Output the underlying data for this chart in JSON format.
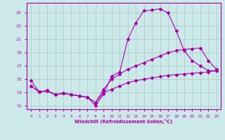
{
  "xlabel": "Windchill (Refroidissement éolien,°C)",
  "bg_color": "#cce8e8",
  "grid_color": "#aad0d0",
  "line_color": "#aa00aa",
  "xlim": [
    -0.5,
    23.5
  ],
  "ylim": [
    10.5,
    26.5
  ],
  "xticks": [
    0,
    1,
    2,
    3,
    4,
    5,
    6,
    7,
    8,
    9,
    10,
    11,
    12,
    13,
    14,
    15,
    16,
    17,
    18,
    19,
    20,
    21,
    22,
    23
  ],
  "yticks": [
    11,
    13,
    15,
    17,
    19,
    21,
    23,
    25
  ],
  "line1_x": [
    0,
    1,
    2,
    3,
    4,
    5,
    6,
    7,
    8,
    9,
    10,
    11,
    12,
    13,
    14,
    15,
    16,
    17,
    18,
    19,
    20,
    21,
    22,
    23
  ],
  "line1_y": [
    14.8,
    13.1,
    13.2,
    12.7,
    12.9,
    12.7,
    12.5,
    12.3,
    11.0,
    12.8,
    15.5,
    16.1,
    21.0,
    23.5,
    25.3,
    25.4,
    25.6,
    25.0,
    22.3,
    19.3,
    17.8,
    17.0,
    16.3,
    16.3
  ],
  "line2_x": [
    0,
    1,
    2,
    3,
    4,
    5,
    6,
    7,
    8,
    9,
    10,
    11,
    12,
    13,
    14,
    15,
    16,
    17,
    18,
    19,
    20,
    21,
    22,
    23
  ],
  "line2_y": [
    14.0,
    13.1,
    13.3,
    12.7,
    12.9,
    12.7,
    12.5,
    12.3,
    11.5,
    13.5,
    15.0,
    15.8,
    16.5,
    17.0,
    17.5,
    18.0,
    18.5,
    19.0,
    19.3,
    19.5,
    19.6,
    19.7,
    17.8,
    16.5
  ],
  "line3_x": [
    0,
    1,
    2,
    3,
    4,
    5,
    6,
    7,
    8,
    9,
    10,
    11,
    12,
    13,
    14,
    15,
    16,
    17,
    18,
    19,
    20,
    21,
    22,
    23
  ],
  "line3_y": [
    14.0,
    13.1,
    13.3,
    12.7,
    12.9,
    12.7,
    12.5,
    12.3,
    11.5,
    13.0,
    13.5,
    14.0,
    14.5,
    14.8,
    15.0,
    15.2,
    15.4,
    15.6,
    15.7,
    15.8,
    15.9,
    16.0,
    16.1,
    16.3
  ]
}
